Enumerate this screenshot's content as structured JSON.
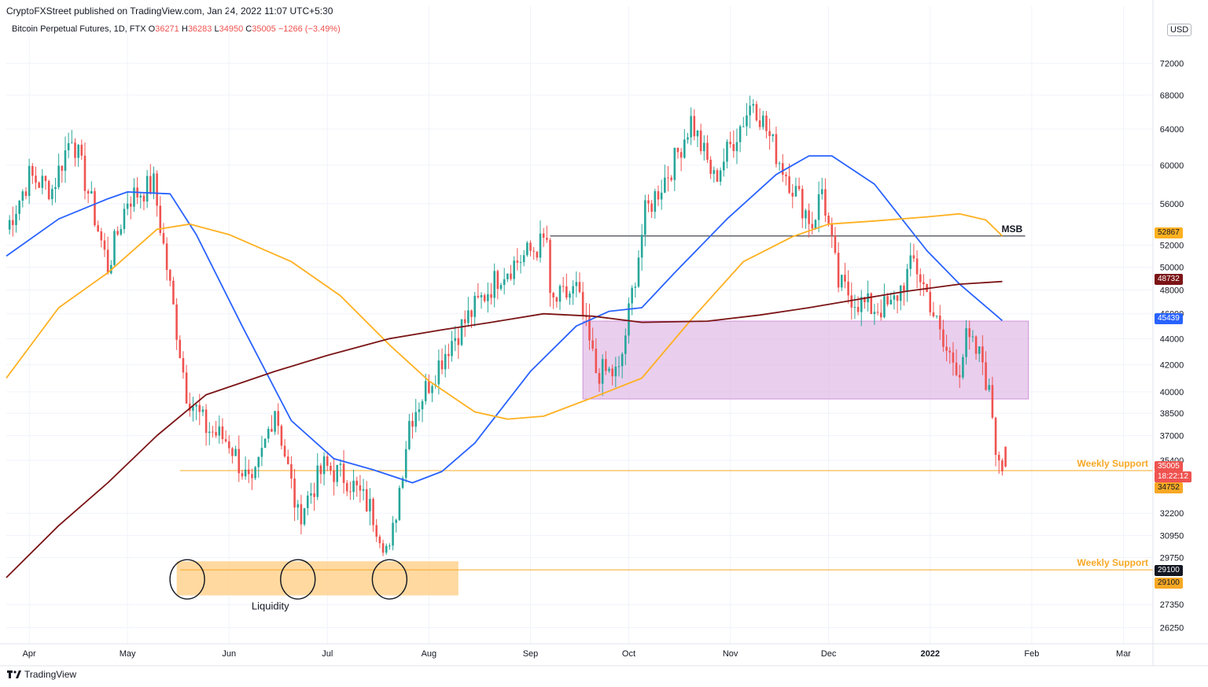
{
  "header": {
    "publisher": "CryptoFXStreet published on TradingView.com, Jan 24, 2022 11:07 UTC+5:30"
  },
  "legend": {
    "symbol": "Bitcoin Perpetual Futures, 1D, FTX",
    "o_label": "O",
    "o_value": "36271",
    "h_label": "H",
    "h_value": "36283",
    "l_label": "L",
    "l_value": "34950",
    "c_label": "C",
    "c_value": "35005",
    "change": "−1266 (−3.49%)"
  },
  "currency": "USD",
  "branding": {
    "name": "TradingView"
  },
  "colors": {
    "up": "#26a69a",
    "down": "#ef5350",
    "ma_blue": "#2962ff",
    "ma_orange": "#ffb020",
    "ma_maroon": "#7b1416",
    "zone_purple": "#e1bee7",
    "zone_orange": "#ffcc80",
    "support": "#f7a825"
  },
  "chart_data": {
    "type": "candlestick",
    "x_ticks": [
      "Apr",
      "May",
      "Jun",
      "Jul",
      "Aug",
      "Sep",
      "Oct",
      "Nov",
      "Dec",
      "2022",
      "Feb",
      "Mar"
    ],
    "y_ticks": [
      26250,
      27350,
      29750,
      30950,
      32200,
      35400,
      37000,
      38500,
      40000,
      42000,
      44000,
      46000,
      48000,
      50000,
      52000,
      56000,
      60000,
      64000,
      68000,
      72000
    ],
    "y_scale": "log",
    "y_range": [
      25500,
      77500
    ],
    "x_range": [
      "2021-03-25",
      "2022-03-10"
    ],
    "last_ohlc": {
      "open": 36271,
      "high": 36283,
      "low": 34950,
      "close": 35005
    },
    "countdown": "18:22:12",
    "price_tags": [
      {
        "value": "52867",
        "series": "orange-ma"
      },
      {
        "value": "48732",
        "series": "maroon-ma"
      },
      {
        "value": "45439",
        "series": "blue-ma"
      },
      {
        "value": "35005",
        "series": "last-price"
      },
      {
        "value": "34752",
        "series": "weekly-support-1"
      },
      {
        "value": "29100",
        "series": "weekly-support-2"
      },
      {
        "value": "29100",
        "series": "weekly-support-2b"
      }
    ],
    "annotations": [
      {
        "text": "MSB",
        "level": 52867,
        "from": "2021-09-07",
        "to": "2022-01-30"
      },
      {
        "text": "Weekly Support",
        "level": 34752,
        "from": "2021-05-17",
        "to": "2022-03-10"
      },
      {
        "text": "Weekly Support",
        "level": 29100,
        "from": "2021-05-17",
        "to": "2022-03-10"
      },
      {
        "text": "Liquidity",
        "zone_from": "2021-05-16",
        "zone_to": "2021-08-10",
        "zone_top": 29550,
        "zone_bottom": 27800
      }
    ],
    "zones": [
      {
        "kind": "purple",
        "from": "2021-09-17",
        "to": "2022-01-31",
        "top": 45400,
        "bottom": 39500
      }
    ],
    "circles": [
      "2021-05-19",
      "2021-06-22",
      "2021-07-20"
    ],
    "series": [
      {
        "kind": "ma-blue",
        "points": [
          [
            "2021-03-25",
            51000
          ],
          [
            "2021-04-10",
            54500
          ],
          [
            "2021-04-25",
            56500
          ],
          [
            "2021-05-01",
            57200
          ],
          [
            "2021-05-14",
            57000
          ],
          [
            "2021-05-22",
            53000
          ],
          [
            "2021-06-05",
            45000
          ],
          [
            "2021-06-20",
            38000
          ],
          [
            "2021-07-03",
            35500
          ],
          [
            "2021-07-15",
            34800
          ],
          [
            "2021-07-27",
            34000
          ],
          [
            "2021-08-05",
            34700
          ],
          [
            "2021-08-15",
            36500
          ],
          [
            "2021-09-01",
            41500
          ],
          [
            "2021-09-15",
            45000
          ],
          [
            "2021-09-25",
            46200
          ],
          [
            "2021-10-05",
            46500
          ],
          [
            "2021-10-15",
            49500
          ],
          [
            "2021-10-31",
            54500
          ],
          [
            "2021-11-15",
            59000
          ],
          [
            "2021-11-25",
            61000
          ],
          [
            "2021-12-02",
            61000
          ],
          [
            "2021-12-15",
            58000
          ],
          [
            "2021-12-31",
            51500
          ],
          [
            "2022-01-10",
            48500
          ],
          [
            "2022-01-23",
            45439
          ]
        ]
      },
      {
        "kind": "ma-orange",
        "points": [
          [
            "2021-03-25",
            41000
          ],
          [
            "2021-04-10",
            46500
          ],
          [
            "2021-04-25",
            49500
          ],
          [
            "2021-05-10",
            53500
          ],
          [
            "2021-05-20",
            54000
          ],
          [
            "2021-06-01",
            53000
          ],
          [
            "2021-06-20",
            50500
          ],
          [
            "2021-07-05",
            47500
          ],
          [
            "2021-07-20",
            43500
          ],
          [
            "2021-08-01",
            40800
          ],
          [
            "2021-08-15",
            38600
          ],
          [
            "2021-08-25",
            38100
          ],
          [
            "2021-09-05",
            38300
          ],
          [
            "2021-09-20",
            39600
          ],
          [
            "2021-10-05",
            41000
          ],
          [
            "2021-10-20",
            45500
          ],
          [
            "2021-11-05",
            50500
          ],
          [
            "2021-11-20",
            52800
          ],
          [
            "2021-12-01",
            54000
          ],
          [
            "2021-12-15",
            54300
          ],
          [
            "2021-12-31",
            54700
          ],
          [
            "2022-01-10",
            55000
          ],
          [
            "2022-01-18",
            54400
          ],
          [
            "2022-01-23",
            52867
          ]
        ]
      },
      {
        "kind": "ma-maroon",
        "points": [
          [
            "2021-03-25",
            28700
          ],
          [
            "2021-04-10",
            31500
          ],
          [
            "2021-04-25",
            34000
          ],
          [
            "2021-05-10",
            37000
          ],
          [
            "2021-05-25",
            39800
          ],
          [
            "2021-06-15",
            41500
          ],
          [
            "2021-07-01",
            42700
          ],
          [
            "2021-07-20",
            44000
          ],
          [
            "2021-08-05",
            44700
          ],
          [
            "2021-08-20",
            45300
          ],
          [
            "2021-09-05",
            46000
          ],
          [
            "2021-09-20",
            45800
          ],
          [
            "2021-10-05",
            45300
          ],
          [
            "2021-10-25",
            45400
          ],
          [
            "2021-11-10",
            45900
          ],
          [
            "2021-11-25",
            46500
          ],
          [
            "2021-12-10",
            47200
          ],
          [
            "2021-12-25",
            47900
          ],
          [
            "2022-01-10",
            48500
          ],
          [
            "2022-01-23",
            48732
          ]
        ]
      },
      {
        "kind": "candles",
        "anchors": [
          [
            "2021-03-25",
            53500
          ],
          [
            "2021-04-01",
            58800
          ],
          [
            "2021-04-08",
            57500
          ],
          [
            "2021-04-14",
            63500
          ],
          [
            "2021-04-20",
            56000
          ],
          [
            "2021-04-25",
            50000
          ],
          [
            "2021-05-01",
            56500
          ],
          [
            "2021-05-09",
            58000
          ],
          [
            "2021-05-13",
            50000
          ],
          [
            "2021-05-19",
            40000
          ],
          [
            "2021-05-25",
            37500
          ],
          [
            "2021-06-01",
            36600
          ],
          [
            "2021-06-08",
            33500
          ],
          [
            "2021-06-15",
            39000
          ],
          [
            "2021-06-22",
            32000
          ],
          [
            "2021-06-30",
            35000
          ],
          [
            "2021-07-07",
            34300
          ],
          [
            "2021-07-14",
            32500
          ],
          [
            "2021-07-20",
            29900
          ],
          [
            "2021-07-26",
            38000
          ],
          [
            "2021-08-07",
            43500
          ],
          [
            "2021-08-15",
            46500
          ],
          [
            "2021-08-23",
            49500
          ],
          [
            "2021-09-06",
            52500
          ],
          [
            "2021-09-07",
            46800
          ],
          [
            "2021-09-15",
            48000
          ],
          [
            "2021-09-21",
            41500
          ],
          [
            "2021-09-28",
            41300
          ],
          [
            "2021-10-06",
            55000
          ],
          [
            "2021-10-15",
            60500
          ],
          [
            "2021-10-20",
            65000
          ],
          [
            "2021-10-27",
            58500
          ],
          [
            "2021-11-08",
            67500
          ],
          [
            "2021-11-16",
            60500
          ],
          [
            "2021-11-26",
            54000
          ],
          [
            "2021-11-29",
            57500
          ],
          [
            "2021-12-04",
            48500
          ],
          [
            "2021-12-10",
            47000
          ],
          [
            "2021-12-14",
            46500
          ],
          [
            "2021-12-20",
            46500
          ],
          [
            "2021-12-27",
            50500
          ],
          [
            "2022-01-01",
            47000
          ],
          [
            "2022-01-05",
            43300
          ],
          [
            "2022-01-10",
            41800
          ],
          [
            "2022-01-12",
            43900
          ],
          [
            "2022-01-17",
            42300
          ],
          [
            "2022-01-20",
            38500
          ],
          [
            "2022-01-21",
            36200
          ],
          [
            "2022-01-23",
            35500
          ],
          [
            "2022-01-24",
            35005
          ]
        ]
      }
    ]
  }
}
